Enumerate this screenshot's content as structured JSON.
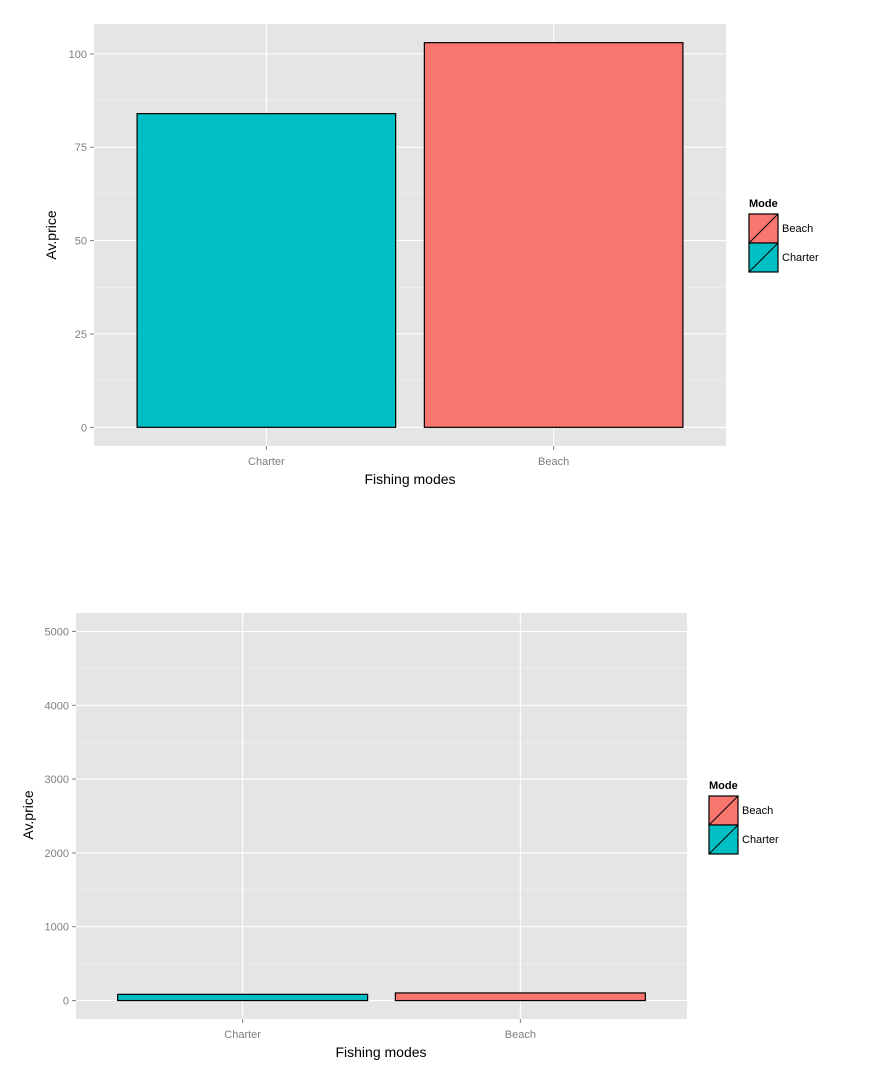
{
  "chart_data": [
    {
      "type": "bar",
      "categories": [
        "Charter",
        "Beach"
      ],
      "values": [
        84,
        103
      ],
      "colors": [
        "#00bfc4",
        "#f8766d"
      ],
      "xlabel": "Fishing modes",
      "ylabel": "Av.price",
      "ylim": [
        -5,
        108
      ],
      "yticks": [
        0,
        25,
        50,
        75,
        100
      ],
      "ytick_labels": [
        "0",
        "25",
        "50",
        "75",
        "100"
      ],
      "grid": true,
      "legend": {
        "title": "Mode",
        "position": "right",
        "entries": [
          {
            "label": "Beach",
            "color": "#f8766d"
          },
          {
            "label": "Charter",
            "color": "#00bfc4"
          }
        ]
      }
    },
    {
      "type": "bar",
      "categories": [
        "Charter",
        "Beach"
      ],
      "values": [
        84,
        103
      ],
      "colors": [
        "#00bfc4",
        "#f8766d"
      ],
      "xlabel": "Fishing modes",
      "ylabel": "Av.price",
      "ylim": [
        -250,
        5250
      ],
      "yticks": [
        0,
        1000,
        2000,
        3000,
        4000,
        5000
      ],
      "ytick_labels": [
        "0",
        "1000",
        "2000",
        "3000",
        "4000",
        "5000"
      ],
      "grid": true,
      "legend": {
        "title": "Mode",
        "position": "right",
        "entries": [
          {
            "label": "Beach",
            "color": "#f8766d"
          },
          {
            "label": "Charter",
            "color": "#00bfc4"
          }
        ]
      }
    }
  ]
}
